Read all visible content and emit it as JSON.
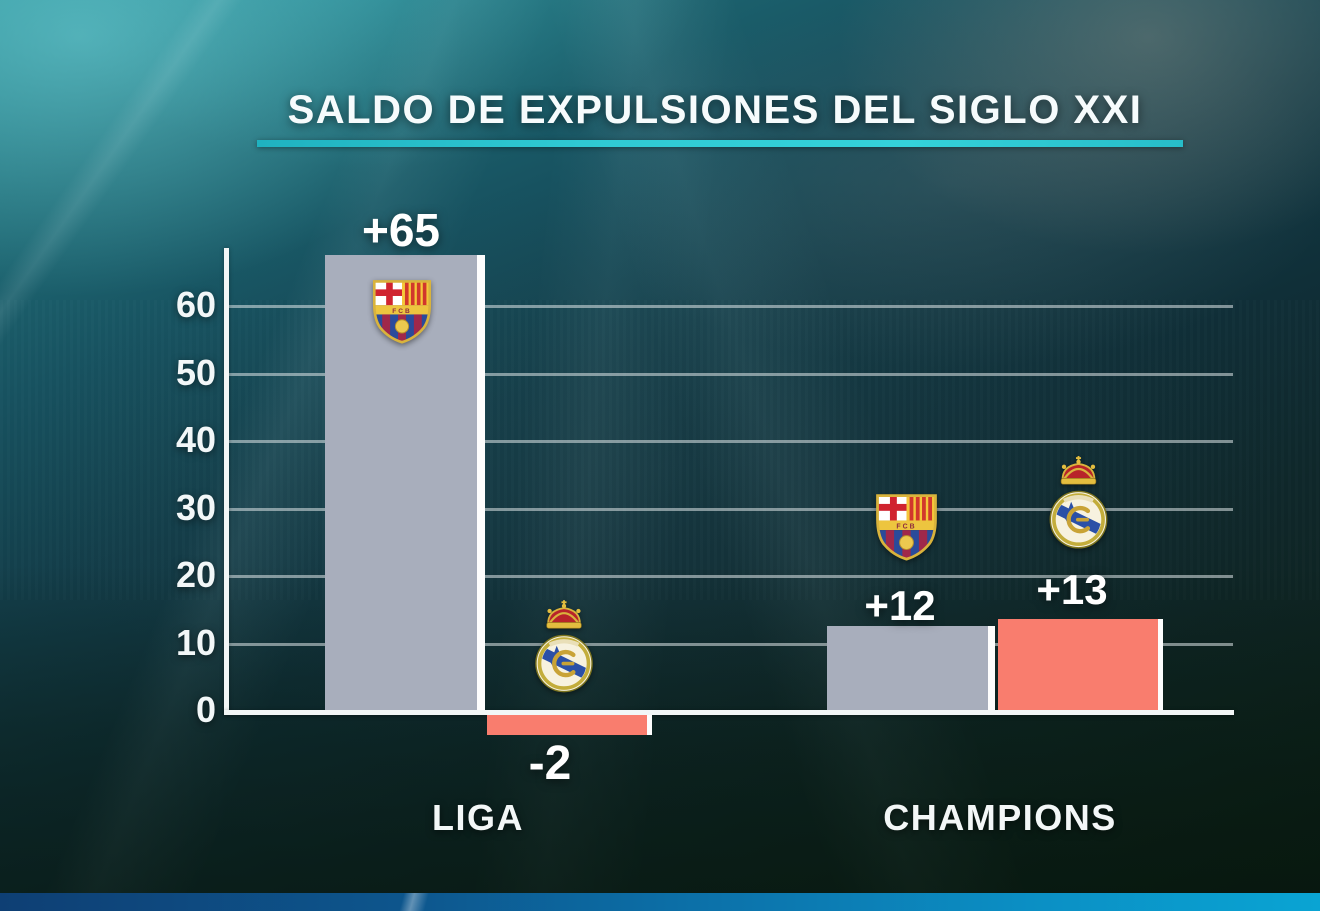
{
  "header": {
    "title": "SALDO DE EXPULSIONES DEL SIGLO XXI"
  },
  "chart_data": {
    "type": "bar",
    "title": "SALDO DE EXPULSIONES DEL SIGLO XXI",
    "categories": [
      "LIGA",
      "CHAMPIONS"
    ],
    "series": [
      {
        "name": "FC Barcelona",
        "icon": "fc-barcelona-crest",
        "color": "#a8aebc",
        "values": [
          65,
          12
        ],
        "labels": [
          "+65",
          "+12"
        ]
      },
      {
        "name": "Real Madrid",
        "icon": "real-madrid-crest",
        "color": "#f97d6e",
        "values": [
          -2,
          13
        ],
        "labels": [
          "-2",
          "+13"
        ]
      }
    ],
    "yticks": [
      0,
      10,
      20,
      30,
      40,
      50,
      60
    ],
    "ylim": [
      -5,
      67
    ],
    "grid": "horizontal",
    "legend": "none",
    "colors": {
      "accent_underline": "#2cc9d3",
      "axis": "#f2f6f6",
      "gridline": "#dfe5e8",
      "bar_edge": "#ffffff"
    }
  }
}
